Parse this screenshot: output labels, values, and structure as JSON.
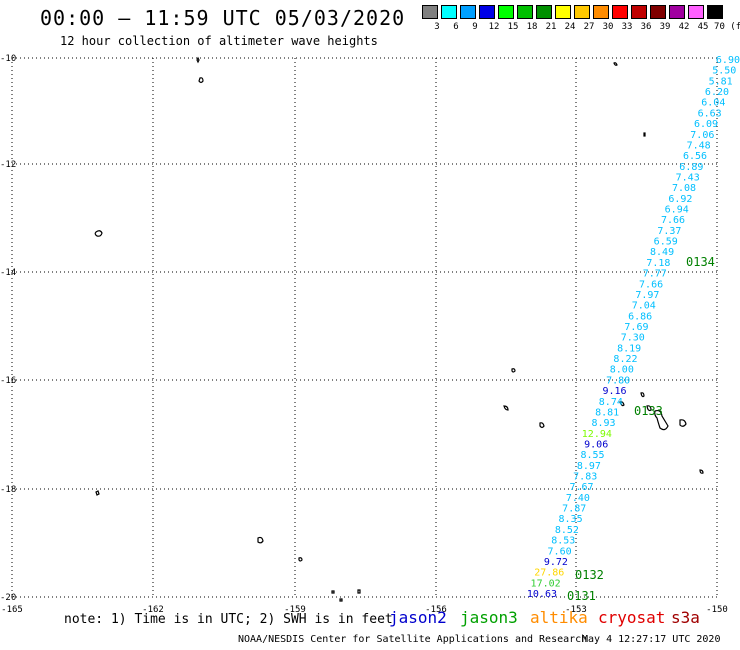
{
  "header": {
    "title": "00:00 – 11:59 UTC 05/03/2020",
    "subtitle": "12 hour collection of altimeter wave heights"
  },
  "color_scale": {
    "labels": [
      "3",
      "6",
      "9",
      "12",
      "15",
      "18",
      "21",
      "24",
      "27",
      "30",
      "33",
      "36",
      "39",
      "42",
      "45",
      "70 (ft)"
    ],
    "colors": [
      "#808080",
      "#00ffff",
      "#00a0ff",
      "#0000e6",
      "#00ff00",
      "#00c000",
      "#009000",
      "#ffff00",
      "#ffc800",
      "#ff8c00",
      "#ff0000",
      "#c00000",
      "#800000",
      "#a000a0",
      "#ff60ff",
      "#000000"
    ]
  },
  "axes": {
    "lat_labels": [
      "-10",
      "-12",
      "-14",
      "-16",
      "-18",
      "-20"
    ],
    "lon_labels": [
      "-165",
      "-162",
      "-159",
      "-156",
      "-153",
      "-150"
    ]
  },
  "track_labels": [
    {
      "text": "0134",
      "color": "#008000"
    },
    {
      "text": "0133",
      "color": "#008000"
    },
    {
      "text": "0132",
      "color": "#008000"
    },
    {
      "text": "0131",
      "color": "#008000"
    }
  ],
  "swh_values": [
    {
      "v": "6.90",
      "c": "#00bfff"
    },
    {
      "v": "5.50",
      "c": "#00bfff"
    },
    {
      "v": "5.81",
      "c": "#00bfff"
    },
    {
      "v": "6.20",
      "c": "#00bfff"
    },
    {
      "v": "6.04",
      "c": "#00bfff"
    },
    {
      "v": "6.63",
      "c": "#00bfff"
    },
    {
      "v": "6.09",
      "c": "#00bfff"
    },
    {
      "v": "7.06",
      "c": "#00bfff"
    },
    {
      "v": "7.48",
      "c": "#00bfff"
    },
    {
      "v": "6.56",
      "c": "#00bfff"
    },
    {
      "v": "6.89",
      "c": "#00bfff"
    },
    {
      "v": "7.43",
      "c": "#00bfff"
    },
    {
      "v": "7.08",
      "c": "#00bfff"
    },
    {
      "v": "6.92",
      "c": "#00bfff"
    },
    {
      "v": "6.94",
      "c": "#00bfff"
    },
    {
      "v": "7.66",
      "c": "#00bfff"
    },
    {
      "v": "7.37",
      "c": "#00bfff"
    },
    {
      "v": "6.59",
      "c": "#00bfff"
    },
    {
      "v": "8.49",
      "c": "#00bfff"
    },
    {
      "v": "7.18",
      "c": "#00bfff"
    },
    {
      "v": "7.77",
      "c": "#00bfff"
    },
    {
      "v": "7.66",
      "c": "#00bfff"
    },
    {
      "v": "7.97",
      "c": "#00bfff"
    },
    {
      "v": "7.04",
      "c": "#00bfff"
    },
    {
      "v": "6.86",
      "c": "#00bfff"
    },
    {
      "v": "7.69",
      "c": "#00bfff"
    },
    {
      "v": "7.30",
      "c": "#00bfff"
    },
    {
      "v": "8.19",
      "c": "#00bfff"
    },
    {
      "v": "8.22",
      "c": "#00bfff"
    },
    {
      "v": "8.00",
      "c": "#00bfff"
    },
    {
      "v": "7.80",
      "c": "#00bfff"
    },
    {
      "v": "9.16",
      "c": "#0000cd"
    },
    {
      "v": "8.74",
      "c": "#00bfff"
    },
    {
      "v": "8.81",
      "c": "#00bfff"
    },
    {
      "v": "8.93",
      "c": "#00bfff"
    },
    {
      "v": "12.94",
      "c": "#7cfc00"
    },
    {
      "v": "9.06",
      "c": "#0000cd"
    },
    {
      "v": "8.55",
      "c": "#00bfff"
    },
    {
      "v": "8.97",
      "c": "#00bfff"
    },
    {
      "v": "7.83",
      "c": "#00bfff"
    },
    {
      "v": "7.67",
      "c": "#00bfff"
    },
    {
      "v": "7.40",
      "c": "#00bfff"
    },
    {
      "v": "7.87",
      "c": "#00bfff"
    },
    {
      "v": "8.35",
      "c": "#00bfff"
    },
    {
      "v": "8.52",
      "c": "#00bfff"
    },
    {
      "v": "8.53",
      "c": "#00bfff"
    },
    {
      "v": "7.60",
      "c": "#00bfff"
    },
    {
      "v": "9.72",
      "c": "#0000cd"
    },
    {
      "v": "27.86",
      "c": "#ffd700"
    },
    {
      "v": "17.02",
      "c": "#32cd32"
    },
    {
      "v": "10.63",
      "c": "#0000cd"
    }
  ],
  "footer": {
    "note": "note: 1) Time is in UTC; 2) SWH is in feet",
    "legend": [
      {
        "name": "jason2",
        "color": "#0000cd"
      },
      {
        "name": "jason3",
        "color": "#00a000"
      },
      {
        "name": "altika",
        "color": "#ff8c00"
      },
      {
        "name": "cryosat",
        "color": "#e00000"
      },
      {
        "name": "s3a",
        "color": "#a00000"
      }
    ],
    "credit": "NOAA/NESDIS Center for Satellite Applications and Research",
    "timestamp": "May  4 12:27:17 UTC 2020"
  }
}
